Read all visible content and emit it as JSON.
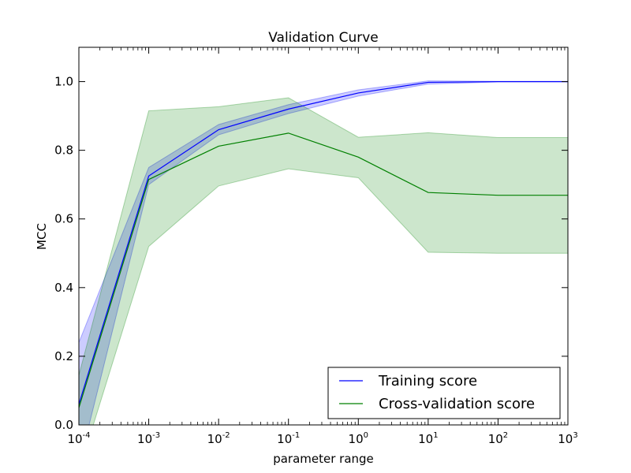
{
  "chart_data": {
    "type": "line",
    "title": "Validation Curve",
    "xlabel": "parameter range",
    "ylabel": "MCC",
    "x_scale": "log",
    "x": [
      0.0001,
      0.001,
      0.01,
      0.1,
      1,
      10,
      100,
      1000
    ],
    "xlim": [
      0.0001,
      1000
    ],
    "ylim": [
      0.0,
      1.1
    ],
    "x_ticks": [
      {
        "base": "10",
        "exp": "-4",
        "value": 0.0001
      },
      {
        "base": "10",
        "exp": "-3",
        "value": 0.001
      },
      {
        "base": "10",
        "exp": "-2",
        "value": 0.01
      },
      {
        "base": "10",
        "exp": "-1",
        "value": 0.1
      },
      {
        "base": "10",
        "exp": "0",
        "value": 1
      },
      {
        "base": "10",
        "exp": "1",
        "value": 10
      },
      {
        "base": "10",
        "exp": "2",
        "value": 100
      },
      {
        "base": "10",
        "exp": "3",
        "value": 1000
      }
    ],
    "y_ticks": [
      "0.0",
      "0.2",
      "0.4",
      "0.6",
      "0.8",
      "1.0"
    ],
    "grid": false,
    "legend_position": "lower-right",
    "series": [
      {
        "name": "Training score",
        "color": "#0000ff",
        "values": [
          0.06,
          0.725,
          0.86,
          0.92,
          0.967,
          0.998,
          1.0,
          1.0
        ],
        "band_lower": [
          -0.12,
          0.7,
          0.845,
          0.907,
          0.958,
          0.993,
          0.999,
          0.999
        ],
        "band_upper": [
          0.24,
          0.75,
          0.875,
          0.933,
          0.976,
          1.002,
          1.001,
          1.001
        ],
        "band_color": "#0000ff",
        "band_opacity": 0.2
      },
      {
        "name": "Cross-validation score",
        "color": "#008000",
        "values": [
          0.05,
          0.715,
          0.812,
          0.85,
          0.78,
          0.677,
          0.669,
          0.669
        ],
        "band_lower": [
          -0.135,
          0.52,
          0.696,
          0.746,
          0.72,
          0.503,
          0.5,
          0.5
        ],
        "band_upper": [
          0.145,
          0.915,
          0.927,
          0.953,
          0.838,
          0.851,
          0.837,
          0.837
        ],
        "band_color": "#008000",
        "band_opacity": 0.2
      }
    ]
  }
}
